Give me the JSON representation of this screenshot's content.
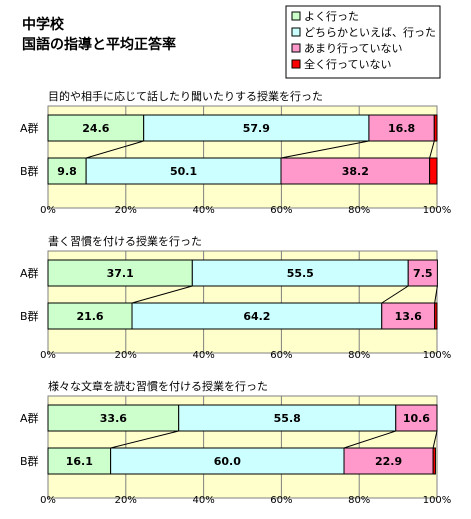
{
  "title": [
    "中学校",
    "国語の指導と平均正答率"
  ],
  "colors": {
    "plot_bg": "#ffffcc",
    "bar_border": "#000000",
    "series": [
      "#ccffcc",
      "#ccffff",
      "#ff99cc",
      "#ff0000"
    ]
  },
  "chart_data": [
    {
      "type": "bar",
      "orientation": "horizontal",
      "stacked": true,
      "title": "目的や相手に応じて話したり聞いたりする授業を行った",
      "categories": [
        "A群",
        "B群"
      ],
      "series": [
        {
          "name": "よく行った",
          "values": [
            24.6,
            9.8
          ]
        },
        {
          "name": "どちらかといえば、行った",
          "values": [
            57.9,
            50.1
          ]
        },
        {
          "name": "あまり行っていない",
          "values": [
            16.8,
            38.2
          ]
        },
        {
          "name": "全く行っていない",
          "values": [
            0.7,
            1.9
          ]
        }
      ],
      "data_labels": [
        [
          "24.6",
          "9.8"
        ],
        [
          "57.9",
          "50.1"
        ],
        [
          "16.8",
          "38.2"
        ],
        [
          "",
          ""
        ]
      ],
      "xlim": [
        0,
        100
      ],
      "xticks": [
        "0%",
        "20%",
        "40%",
        "60%",
        "80%",
        "100%"
      ],
      "series_lines": true
    },
    {
      "type": "bar",
      "orientation": "horizontal",
      "stacked": true,
      "title": "書く習慣を付ける授業を行った",
      "categories": [
        "A群",
        "B群"
      ],
      "series": [
        {
          "name": "よく行った",
          "values": [
            37.1,
            21.6
          ]
        },
        {
          "name": "どちらかといえば、行った",
          "values": [
            55.5,
            64.2
          ]
        },
        {
          "name": "あまり行っていない",
          "values": [
            7.5,
            13.6
          ]
        },
        {
          "name": "全く行っていない",
          "values": [
            0,
            0.6
          ]
        }
      ],
      "data_labels": [
        [
          "37.1",
          "21.6"
        ],
        [
          "55.5",
          "64.2"
        ],
        [
          "7.5",
          "13.6"
        ],
        [
          "",
          ""
        ]
      ],
      "xlim": [
        0,
        100
      ],
      "xticks": [
        "0%",
        "20%",
        "40%",
        "60%",
        "80%",
        "100%"
      ],
      "series_lines": true
    },
    {
      "type": "bar",
      "orientation": "horizontal",
      "stacked": true,
      "title": "様々な文章を読む習慣を付ける授業を行った",
      "categories": [
        "A群",
        "B群"
      ],
      "series": [
        {
          "name": "よく行った",
          "values": [
            33.6,
            16.1
          ]
        },
        {
          "name": "どちらかといえば、行った",
          "values": [
            55.8,
            60.0
          ]
        },
        {
          "name": "あまり行っていない",
          "values": [
            10.6,
            22.9
          ]
        },
        {
          "name": "全く行っていない",
          "values": [
            0,
            0.6
          ]
        }
      ],
      "data_labels": [
        [
          "33.6",
          "16.1"
        ],
        [
          "55.8",
          "60.0"
        ],
        [
          "10.6",
          "22.9"
        ],
        [
          "",
          ""
        ]
      ],
      "xlim": [
        0,
        100
      ],
      "xticks": [
        "0%",
        "20%",
        "40%",
        "60%",
        "80%",
        "100%"
      ],
      "series_lines": true
    }
  ],
  "legend": {
    "placement": "top-right",
    "items": [
      "よく行った",
      "どちらかといえば、行った",
      "あまり行っていない",
      "全く行っていない"
    ]
  }
}
